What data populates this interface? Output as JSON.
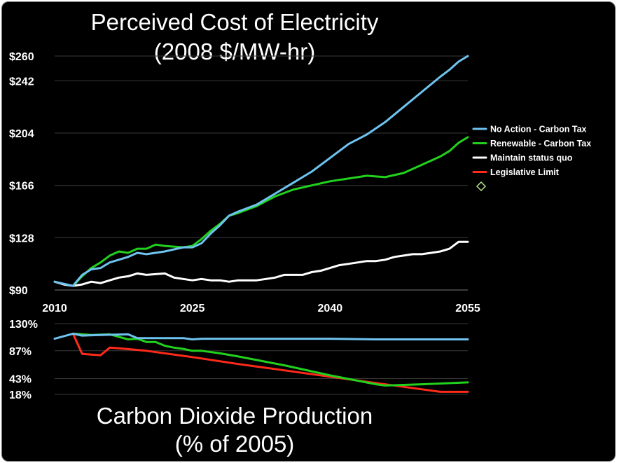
{
  "chart_data": [
    {
      "type": "line",
      "title": "Perceived Cost of Electricity",
      "subtitle": "(2008 $/MW-hr)",
      "xlabel": "",
      "ylabel": "",
      "xlim": [
        2010,
        2055
      ],
      "ylim": [
        90,
        260
      ],
      "x_ticks": [
        "2010",
        "2025",
        "2040",
        "2055"
      ],
      "y_ticks": [
        "$90",
        "$128",
        "$166",
        "$204",
        "$242",
        "$260"
      ],
      "grid": true,
      "legend_position": "right",
      "series": [
        {
          "name": "No Action - Carbon Tax",
          "color": "#6ec3ef",
          "x": [
            2010,
            2012,
            2013,
            2014,
            2015,
            2016,
            2017,
            2018,
            2019,
            2020,
            2022,
            2024,
            2025,
            2026,
            2027,
            2028,
            2029,
            2030,
            2032,
            2034,
            2036,
            2038,
            2040,
            2042,
            2044,
            2046,
            2048,
            2050,
            2052,
            2053,
            2054,
            2055
          ],
          "values": [
            96,
            93,
            101,
            105,
            106,
            110,
            112,
            114,
            117,
            116,
            118,
            121,
            121,
            124,
            131,
            137,
            144,
            147,
            152,
            160,
            168,
            176,
            186,
            196,
            203,
            212,
            223,
            234,
            245,
            250,
            256,
            260
          ]
        },
        {
          "name": "Renewable - Carbon Tax",
          "color": "#22d11d",
          "x": [
            2012,
            2013,
            2014,
            2015,
            2016,
            2017,
            2018,
            2019,
            2020,
            2021,
            2022,
            2024,
            2025,
            2026,
            2027,
            2028,
            2029,
            2030,
            2032,
            2034,
            2036,
            2038,
            2040,
            2042,
            2044,
            2046,
            2048,
            2050,
            2052,
            2053,
            2054,
            2055
          ],
          "values": [
            93,
            100,
            106,
            110,
            115,
            118,
            117,
            120,
            120,
            123,
            122,
            121,
            122,
            127,
            133,
            138,
            144,
            146,
            151,
            158,
            163,
            166,
            169,
            171,
            173,
            172,
            175,
            181,
            187,
            191,
            197,
            201
          ]
        },
        {
          "name": "Maintain status quo",
          "color": "#ffffff",
          "x": [
            2010,
            2011,
            2012,
            2013,
            2014,
            2015,
            2016,
            2017,
            2018,
            2019,
            2020,
            2022,
            2023,
            2024,
            2025,
            2026,
            2027,
            2028,
            2029,
            2030,
            2031,
            2032,
            2033,
            2034,
            2035,
            2036,
            2037,
            2038,
            2039,
            2040,
            2041,
            2042,
            2043,
            2044,
            2045,
            2046,
            2047,
            2048,
            2049,
            2050,
            2051,
            2052,
            2053,
            2054,
            2055
          ],
          "values": [
            96,
            94,
            93,
            94,
            96,
            95,
            97,
            99,
            100,
            102,
            101,
            102,
            99,
            98,
            97,
            98,
            97,
            97,
            96,
            97,
            97,
            97,
            98,
            99,
            101,
            101,
            101,
            103,
            104,
            106,
            108,
            109,
            110,
            111,
            111,
            112,
            114,
            115,
            116,
            116,
            117,
            118,
            120,
            125,
            125
          ]
        },
        {
          "name": "Legislative Limit",
          "color": "#ff2a1a",
          "x": [],
          "values": []
        }
      ]
    },
    {
      "type": "line",
      "title": "Carbon Dioxide Production",
      "subtitle": "(% of 2005)",
      "xlabel": "",
      "ylabel": "",
      "xlim": [
        2010,
        2055
      ],
      "ylim": [
        18,
        130
      ],
      "y_ticks": [
        "18%",
        "43%",
        "87%",
        "130%"
      ],
      "grid": true,
      "series": [
        {
          "color": "#6ec3ef",
          "x": [
            2010,
            2012,
            2013,
            2015,
            2018,
            2019,
            2021,
            2024,
            2025,
            2026,
            2030,
            2035,
            2040,
            2045,
            2050,
            2055
          ],
          "values": [
            106,
            114,
            111,
            112,
            113,
            107,
            107,
            107,
            105,
            106,
            106,
            106,
            106,
            105,
            105,
            105
          ]
        },
        {
          "color": "#22d11d",
          "x": [
            2012,
            2014,
            2016,
            2017,
            2018,
            2019,
            2020,
            2021,
            2022,
            2023,
            2024,
            2025,
            2026,
            2028,
            2030,
            2035,
            2040,
            2045,
            2046,
            2050,
            2055
          ],
          "values": [
            114,
            112,
            113,
            109,
            105,
            106,
            101,
            101,
            95,
            92,
            90,
            87,
            87,
            83,
            78,
            64,
            48,
            34,
            32,
            34,
            37
          ]
        },
        {
          "color": "#ff2a1a",
          "x": [
            2012,
            2013,
            2014,
            2015,
            2016,
            2017,
            2020,
            2025,
            2030,
            2035,
            2040,
            2045,
            2050,
            2052,
            2055
          ],
          "values": [
            114,
            82,
            81,
            80,
            92,
            91,
            87,
            77,
            66,
            56,
            46,
            36,
            26,
            22,
            22
          ]
        }
      ]
    }
  ],
  "legend": [
    {
      "label": "No Action - Carbon Tax",
      "color": "#6ec3ef"
    },
    {
      "label": "Renewable - Carbon Tax",
      "color": "#22d11d"
    },
    {
      "label": "Maintain status quo",
      "color": "#ffffff"
    },
    {
      "label": "Legislative Limit",
      "color": "#ff2a1a"
    }
  ]
}
